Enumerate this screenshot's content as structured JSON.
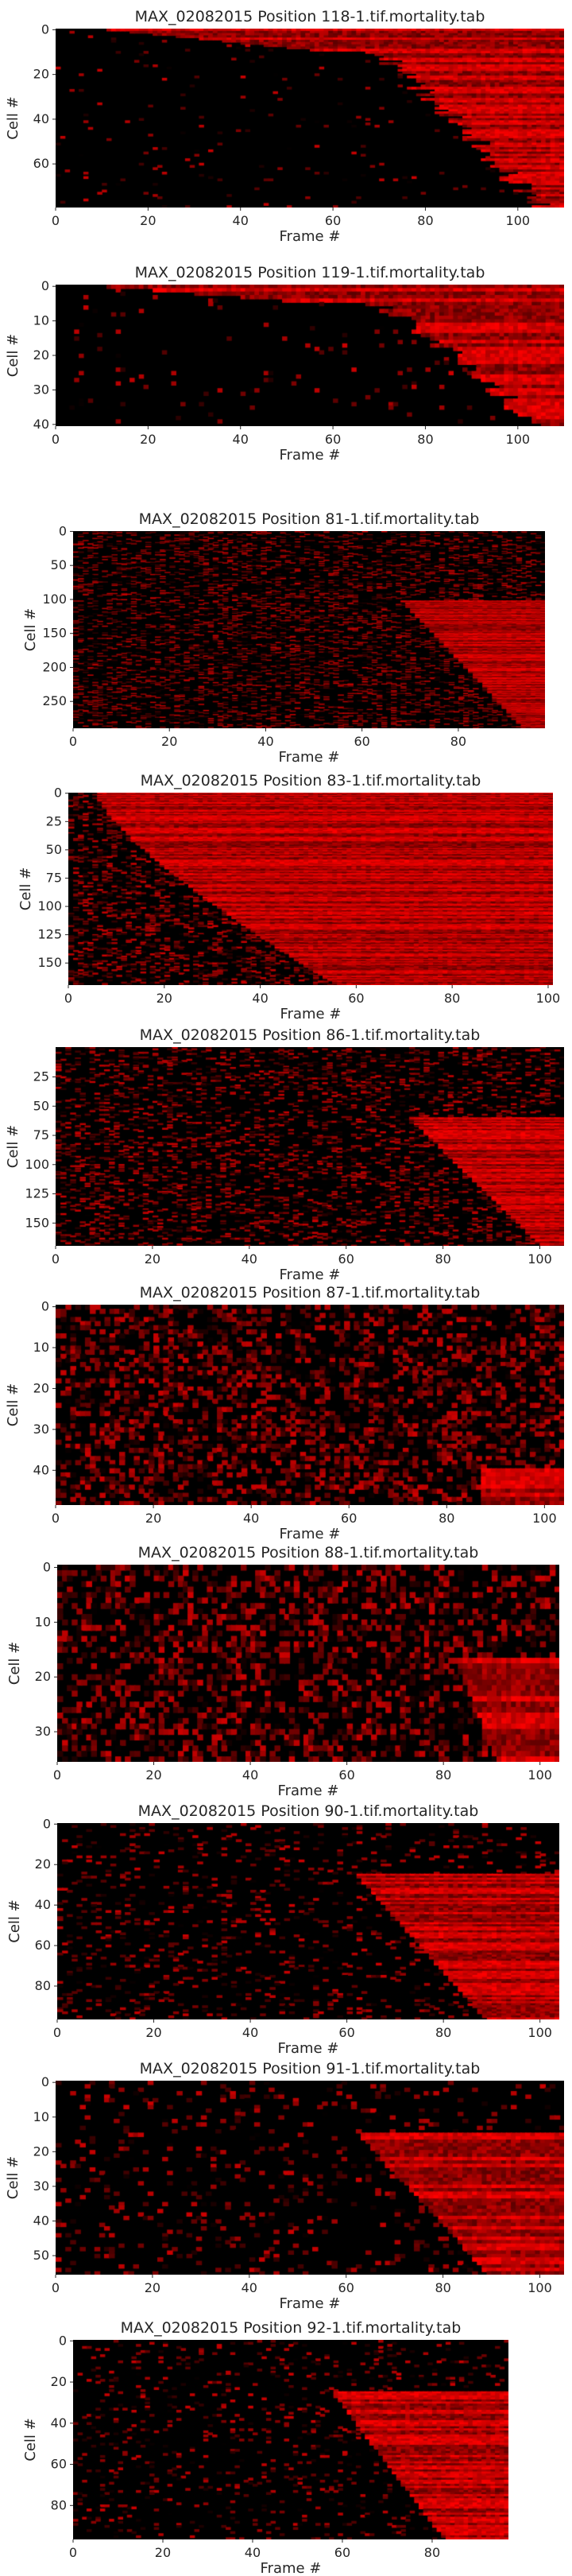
{
  "chart_data": [
    {
      "type": "heatmap",
      "title": "MAX_02082015 Position 118-1.tif.mortality.tab",
      "xlabel": "Frame #",
      "ylabel": "Cell #",
      "frames": 110,
      "cells": 80,
      "xticks": [
        0,
        20,
        40,
        60,
        80,
        100
      ],
      "yticks": [
        0,
        20,
        40,
        60
      ],
      "pattern": "death-curve-late",
      "colormap": [
        "#000000",
        "#ff0000"
      ]
    },
    {
      "type": "heatmap",
      "title": "MAX_02082015 Position 119-1.tif.mortality.tab",
      "xlabel": "Frame #",
      "ylabel": "Cell #",
      "frames": 110,
      "cells": 41,
      "xticks": [
        0,
        20,
        40,
        60,
        80,
        100
      ],
      "yticks": [
        0,
        10,
        20,
        30,
        40
      ],
      "pattern": "death-curve-late",
      "colormap": [
        "#000000",
        "#ff0000"
      ]
    },
    {
      "type": "heatmap",
      "title": "MAX_02082015 Position 81-1.tif.mortality.tab",
      "xlabel": "Frame #",
      "ylabel": "Cell #",
      "frames": 98,
      "cells": 290,
      "xticks": [
        0,
        20,
        40,
        60,
        80
      ],
      "yticks": [
        0,
        50,
        100,
        150,
        200,
        250
      ],
      "pattern": "noisy-with-late-deaths",
      "colormap": [
        "#000000",
        "#ff0000"
      ]
    },
    {
      "type": "heatmap",
      "title": "MAX_02082015 Position 83-1.tif.mortality.tab",
      "xlabel": "Frame #",
      "ylabel": "Cell #",
      "frames": 101,
      "cells": 170,
      "xticks": [
        0,
        20,
        40,
        60,
        80,
        100
      ],
      "yticks": [
        0,
        25,
        50,
        75,
        100,
        125,
        150
      ],
      "pattern": "noisy-early-curve",
      "colormap": [
        "#000000",
        "#ff0000"
      ]
    },
    {
      "type": "heatmap",
      "title": "MAX_02082015 Position 86-1.tif.mortality.tab",
      "xlabel": "Frame #",
      "ylabel": "Cell #",
      "frames": 105,
      "cells": 170,
      "xticks": [
        0,
        20,
        40,
        60,
        80,
        100
      ],
      "yticks": [
        25,
        50,
        75,
        100,
        125,
        150
      ],
      "pattern": "noisy-with-late-deaths",
      "colormap": [
        "#000000",
        "#ff0000"
      ]
    },
    {
      "type": "heatmap",
      "title": "MAX_02082015 Position 87-1.tif.mortality.tab",
      "xlabel": "Frame #",
      "ylabel": "Cell #",
      "frames": 104,
      "cells": 49,
      "xticks": [
        0,
        20,
        40,
        60,
        80,
        100
      ],
      "yticks": [
        0,
        10,
        20,
        30,
        40
      ],
      "pattern": "dense-noise",
      "colormap": [
        "#000000",
        "#ff0000"
      ]
    },
    {
      "type": "heatmap",
      "title": "MAX_02082015 Position 88-1.tif.mortality.tab",
      "xlabel": "Frame #",
      "ylabel": "Cell #",
      "frames": 104,
      "cells": 36,
      "xticks": [
        0,
        20,
        40,
        60,
        80,
        100
      ],
      "yticks": [
        0,
        10,
        20,
        30
      ],
      "pattern": "dense-noise-late-deaths",
      "colormap": [
        "#000000",
        "#ff0000"
      ]
    },
    {
      "type": "heatmap",
      "title": "MAX_02082015 Position 90-1.tif.mortality.tab",
      "xlabel": "Frame #",
      "ylabel": "Cell #",
      "frames": 104,
      "cells": 97,
      "xticks": [
        0,
        20,
        40,
        60,
        80,
        100
      ],
      "yticks": [
        0,
        20,
        40,
        60,
        80
      ],
      "pattern": "sparse-with-late-deaths",
      "colormap": [
        "#000000",
        "#ff0000"
      ]
    },
    {
      "type": "heatmap",
      "title": "MAX_02082015 Position 91-1.tif.mortality.tab",
      "xlabel": "Frame #",
      "ylabel": "Cell #",
      "frames": 105,
      "cells": 56,
      "xticks": [
        0,
        20,
        40,
        60,
        80,
        100
      ],
      "yticks": [
        0,
        10,
        20,
        30,
        40,
        50
      ],
      "pattern": "sparse-with-late-deaths",
      "colormap": [
        "#000000",
        "#ff0000"
      ]
    },
    {
      "type": "heatmap",
      "title": "MAX_02082015 Position 92-1.tif.mortality.tab",
      "xlabel": "Frame #",
      "ylabel": "Cell #",
      "frames": 97,
      "cells": 97,
      "xticks": [
        0,
        20,
        40,
        60,
        80
      ],
      "yticks": [
        0,
        20,
        40,
        60,
        80
      ],
      "pattern": "sparse-with-late-deaths",
      "colormap": [
        "#000000",
        "#ff0000"
      ]
    }
  ]
}
